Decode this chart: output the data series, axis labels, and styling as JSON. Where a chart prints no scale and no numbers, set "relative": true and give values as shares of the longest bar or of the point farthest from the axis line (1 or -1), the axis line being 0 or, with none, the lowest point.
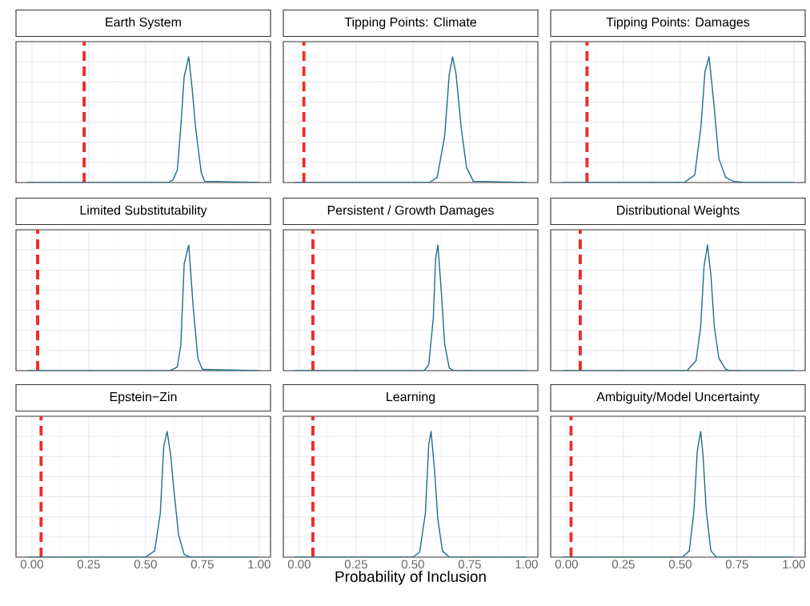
{
  "chart_data": [
    {
      "type": "line",
      "title": "Earth System",
      "relative": true,
      "color": "#1f6e8c",
      "x": [
        -0.02,
        0.6,
        0.62,
        0.64,
        0.655,
        0.67,
        0.69,
        0.705,
        0.72,
        0.745,
        0.76,
        1.0
      ],
      "values": [
        0,
        0,
        0.02,
        0.1,
        0.44,
        0.84,
        1,
        0.75,
        0.44,
        0.08,
        0.01,
        0
      ],
      "xlim": [
        -0.07,
        1.05
      ],
      "xticks": [
        0,
        0.25,
        0.5,
        0.75,
        1
      ],
      "grid": true,
      "tick_labels": false,
      "ref_lines": [
        {
          "axis": "x",
          "value": 0.23,
          "color": "#ee2c2c",
          "line_style": "dashed"
        }
      ]
    },
    {
      "type": "line",
      "title": "Tipping Points: Climate",
      "relative": true,
      "color": "#1f6e8c",
      "x": [
        -0.02,
        0.573,
        0.607,
        0.64,
        0.66,
        0.675,
        0.69,
        0.713,
        0.736,
        0.766,
        1.0
      ],
      "values": [
        0,
        0,
        0.04,
        0.37,
        0.86,
        1,
        0.86,
        0.43,
        0.12,
        0.01,
        0
      ],
      "xlim": [
        -0.07,
        1.05
      ],
      "xticks": [
        0,
        0.25,
        0.5,
        0.75,
        1
      ],
      "grid": true,
      "tick_labels": false,
      "ref_lines": [
        {
          "axis": "x",
          "value": 0.02,
          "color": "#ee2c2c",
          "line_style": "dashed"
        }
      ]
    },
    {
      "type": "line",
      "title": "Tipping Points: Damages",
      "relative": true,
      "color": "#1f6e8c",
      "x": [
        -0.02,
        0.518,
        0.564,
        0.591,
        0.609,
        0.627,
        0.648,
        0.67,
        0.7,
        0.734,
        0.78,
        1.0
      ],
      "values": [
        0,
        0,
        0.06,
        0.44,
        0.88,
        1,
        0.63,
        0.19,
        0.04,
        0.01,
        0,
        0
      ],
      "xlim": [
        -0.07,
        1.05
      ],
      "xticks": [
        0,
        0.25,
        0.5,
        0.75,
        1
      ],
      "grid": true,
      "tick_labels": false,
      "ref_lines": [
        {
          "axis": "x",
          "value": 0.09,
          "color": "#ee2c2c",
          "line_style": "dashed"
        }
      ]
    },
    {
      "type": "line",
      "title": "Limited Substitutability",
      "relative": true,
      "color": "#1f6e8c",
      "x": [
        -0.02,
        0.61,
        0.64,
        0.655,
        0.67,
        0.69,
        0.71,
        0.73,
        0.75,
        1.0
      ],
      "values": [
        0,
        0,
        0.03,
        0.2,
        0.85,
        1,
        0.5,
        0.1,
        0.01,
        0
      ],
      "xlim": [
        -0.07,
        1.05
      ],
      "xticks": [
        0,
        0.25,
        0.5,
        0.75,
        1
      ],
      "grid": true,
      "tick_labels": false,
      "ref_lines": [
        {
          "axis": "x",
          "value": 0.025,
          "color": "#ee2c2c",
          "line_style": "dashed"
        }
      ]
    },
    {
      "type": "line",
      "title": "Persistent / Growth Damages",
      "relative": true,
      "color": "#1f6e8c",
      "x": [
        -0.02,
        0.55,
        0.57,
        0.59,
        0.6,
        0.61,
        0.625,
        0.64,
        0.66,
        0.68,
        1.0
      ],
      "values": [
        0,
        0,
        0.05,
        0.42,
        0.89,
        1,
        0.63,
        0.21,
        0.02,
        0,
        0
      ],
      "xlim": [
        -0.07,
        1.05
      ],
      "xticks": [
        0,
        0.25,
        0.5,
        0.75,
        1
      ],
      "grid": true,
      "tick_labels": false,
      "ref_lines": [
        {
          "axis": "x",
          "value": 0.06,
          "color": "#ee2c2c",
          "line_style": "dashed"
        }
      ]
    },
    {
      "type": "line",
      "title": "Distributional Weights",
      "relative": true,
      "color": "#1f6e8c",
      "x": [
        -0.02,
        0.53,
        0.57,
        0.59,
        0.605,
        0.62,
        0.635,
        0.65,
        0.67,
        0.7,
        0.72,
        1.0
      ],
      "values": [
        0,
        0,
        0.08,
        0.35,
        0.83,
        1,
        0.76,
        0.35,
        0.1,
        0.01,
        0,
        0
      ],
      "xlim": [
        -0.07,
        1.05
      ],
      "xticks": [
        0,
        0.25,
        0.5,
        0.75,
        1
      ],
      "grid": true,
      "tick_labels": false,
      "ref_lines": [
        {
          "axis": "x",
          "value": 0.06,
          "color": "#ee2c2c",
          "line_style": "dashed"
        }
      ]
    },
    {
      "type": "line",
      "title": "Epstein−Zin",
      "relative": true,
      "color": "#1f6e8c",
      "x": [
        -0.02,
        0.5,
        0.54,
        0.565,
        0.58,
        0.595,
        0.61,
        0.625,
        0.645,
        0.67,
        0.7,
        1.0
      ],
      "values": [
        0,
        0,
        0.05,
        0.35,
        0.88,
        1,
        0.82,
        0.53,
        0.18,
        0.02,
        0,
        0
      ],
      "xlim": [
        -0.07,
        1.05
      ],
      "xticks": [
        {
          "value": 0,
          "label": "0.00"
        },
        {
          "value": 0.25,
          "label": "0.25"
        },
        {
          "value": 0.5,
          "label": "0.50"
        },
        {
          "value": 0.75,
          "label": "0.75"
        },
        {
          "value": 1,
          "label": "1.00"
        }
      ],
      "grid": true,
      "tick_labels": "x",
      "ref_lines": [
        {
          "axis": "x",
          "value": 0.04,
          "color": "#ee2c2c",
          "line_style": "dashed"
        }
      ]
    },
    {
      "type": "line",
      "title": "Learning",
      "xlabel": "Probability of Inclusion",
      "relative": true,
      "color": "#1f6e8c",
      "x": [
        -0.02,
        0.5,
        0.53,
        0.555,
        0.57,
        0.58,
        0.595,
        0.61,
        0.63,
        0.66,
        1.0
      ],
      "values": [
        0,
        0,
        0.04,
        0.35,
        0.9,
        1,
        0.7,
        0.3,
        0.05,
        0,
        0
      ],
      "xlim": [
        -0.07,
        1.05
      ],
      "xticks": [
        {
          "value": 0,
          "label": "0.00"
        },
        {
          "value": 0.25,
          "label": "0.25"
        },
        {
          "value": 0.5,
          "label": "0.50"
        },
        {
          "value": 0.75,
          "label": "0.75"
        },
        {
          "value": 1,
          "label": "1.00"
        }
      ],
      "grid": true,
      "tick_labels": "x",
      "ref_lines": [
        {
          "axis": "x",
          "value": 0.06,
          "color": "#ee2c2c",
          "line_style": "dashed"
        }
      ]
    },
    {
      "type": "line",
      "title": "Ambiguity/Model Uncertainty",
      "relative": true,
      "color": "#1f6e8c",
      "x": [
        -0.02,
        0.51,
        0.54,
        0.56,
        0.575,
        0.59,
        0.6,
        0.615,
        0.635,
        0.66,
        1.0
      ],
      "values": [
        0,
        0,
        0.05,
        0.36,
        0.84,
        1,
        0.82,
        0.36,
        0.05,
        0,
        0
      ],
      "xlim": [
        -0.07,
        1.05
      ],
      "xticks": [
        {
          "value": 0,
          "label": "0.00"
        },
        {
          "value": 0.25,
          "label": "0.25"
        },
        {
          "value": 0.5,
          "label": "0.50"
        },
        {
          "value": 0.75,
          "label": "0.75"
        },
        {
          "value": 1,
          "label": "1.00"
        }
      ],
      "grid": true,
      "tick_labels": "x",
      "ref_lines": [
        {
          "axis": "x",
          "value": 0.02,
          "color": "#ee2c2c",
          "line_style": "dashed"
        }
      ]
    }
  ]
}
